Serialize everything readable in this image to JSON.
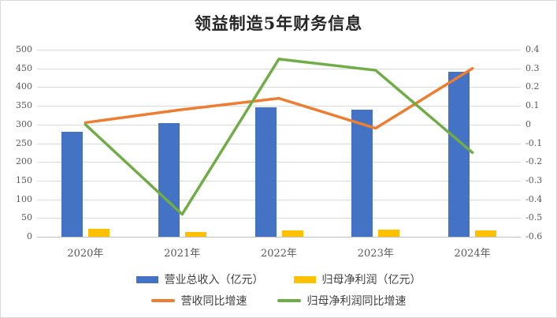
{
  "chart_data": {
    "type": "combo",
    "title": "领益制造5年财务信息",
    "categories": [
      "2020年",
      "2021年",
      "2022年",
      "2023年",
      "2024年"
    ],
    "series": [
      {
        "name": "营业总收入（亿元）",
        "type": "bar",
        "axis": "left",
        "color": "#4472C4",
        "values": [
          281,
          304,
          345,
          340,
          442
        ]
      },
      {
        "name": "归母净利润（亿元）",
        "type": "bar",
        "axis": "left",
        "color": "#FFC000",
        "values": [
          22,
          12,
          16,
          20,
          17
        ]
      },
      {
        "name": "营收同比增速",
        "type": "line",
        "axis": "right",
        "color": "#ED7D31",
        "values": [
          0.01,
          0.08,
          0.14,
          -0.02,
          0.3
        ]
      },
      {
        "name": "归母净利润同比增速",
        "type": "line",
        "axis": "right",
        "color": "#70AD47",
        "values": [
          0.0,
          -0.48,
          0.35,
          0.29,
          -0.15
        ]
      }
    ],
    "left_axis": {
      "min": 0,
      "max": 500,
      "step": 50,
      "tick_labels": [
        "500",
        "450",
        "400",
        "350",
        "300",
        "250",
        "200",
        "150",
        "100",
        "50",
        "0"
      ]
    },
    "right_axis": {
      "min": -0.6,
      "max": 0.4,
      "step": 0.1,
      "tick_labels": [
        "0.4",
        "0.3",
        "0.2",
        "0.1",
        "0",
        "-0.1",
        "-0.2",
        "-0.3",
        "-0.4",
        "-0.5",
        "-0.6"
      ]
    },
    "grid": true,
    "legend_position": "bottom",
    "colors": {
      "gridline": "#D9D9D9",
      "baseline": "#BFBFBF",
      "axis_text": "#595959",
      "title_text": "#262626",
      "background": "#FFFFFF",
      "border": "#D9D9D9"
    }
  }
}
